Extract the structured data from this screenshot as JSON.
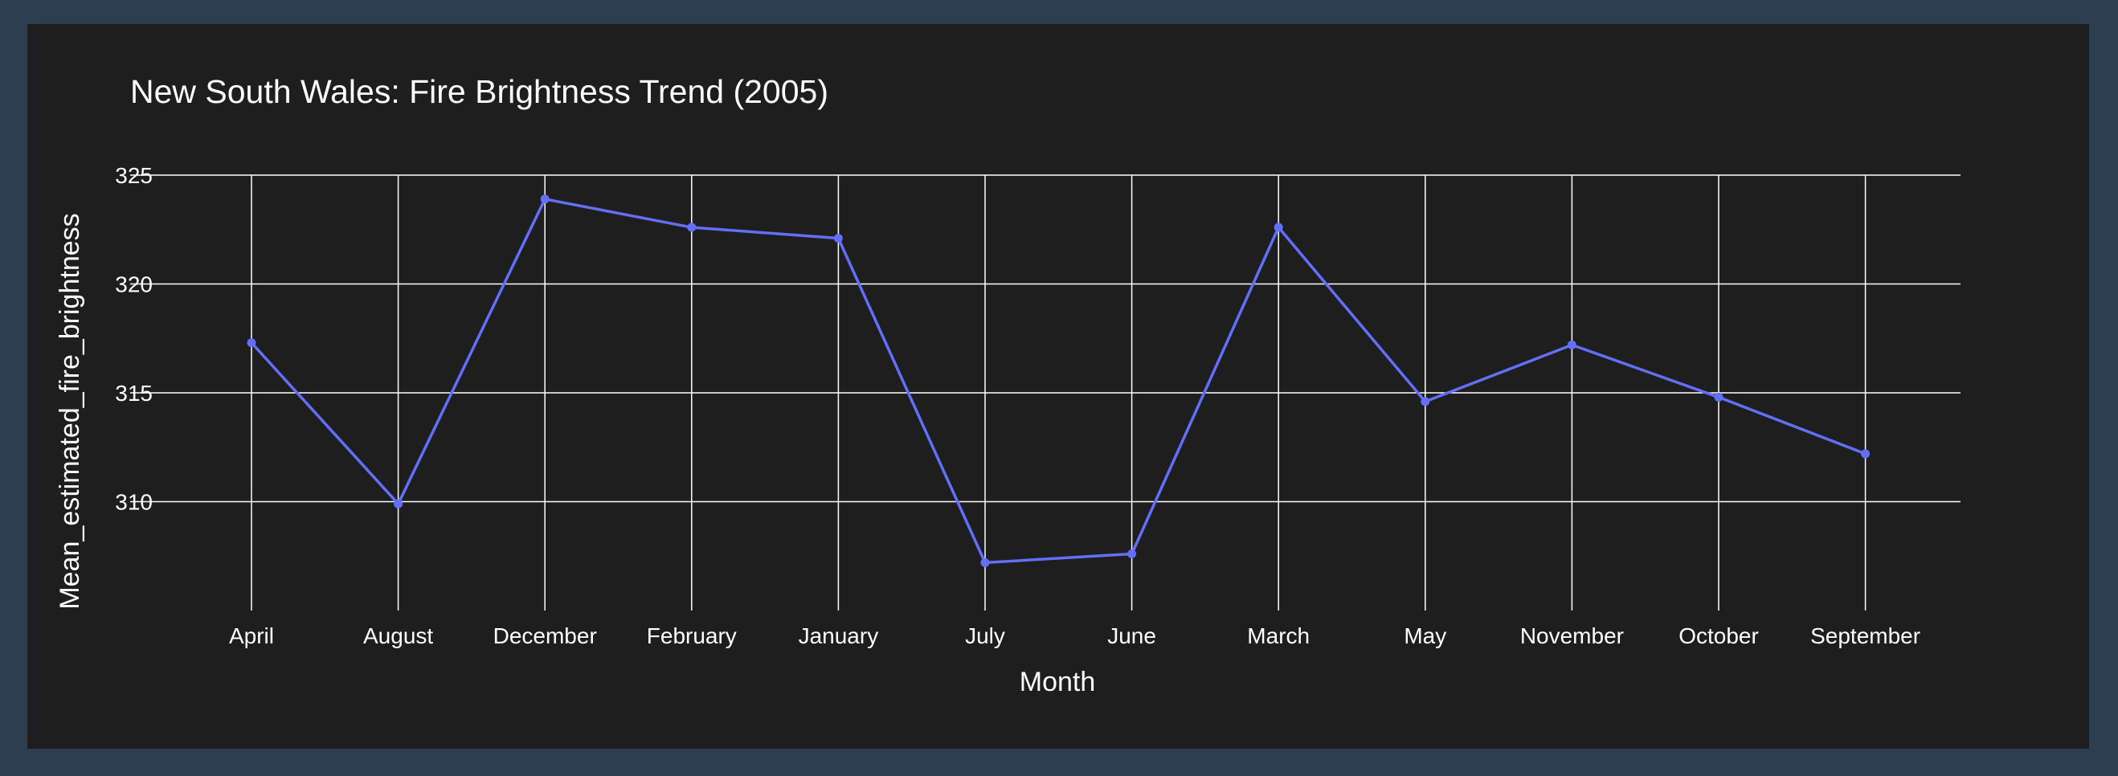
{
  "chart_data": {
    "type": "line",
    "title": "New South Wales: Fire Brightness Trend (2005)",
    "xlabel": "Month",
    "ylabel": "Mean_estimated_fire_brightness",
    "categories": [
      "April",
      "August",
      "December",
      "February",
      "January",
      "July",
      "June",
      "March",
      "May",
      "November",
      "October",
      "September"
    ],
    "values": [
      317.3,
      309.9,
      323.9,
      322.6,
      322.1,
      307.2,
      307.6,
      322.6,
      314.6,
      317.2,
      314.8,
      312.2
    ],
    "yticks": [
      310,
      315,
      320,
      325
    ],
    "ylim": [
      305.0,
      325.0
    ],
    "grid": true,
    "line_color": "#636efa",
    "background": "#1e1e1e",
    "frame_color": "#2c3e50"
  }
}
